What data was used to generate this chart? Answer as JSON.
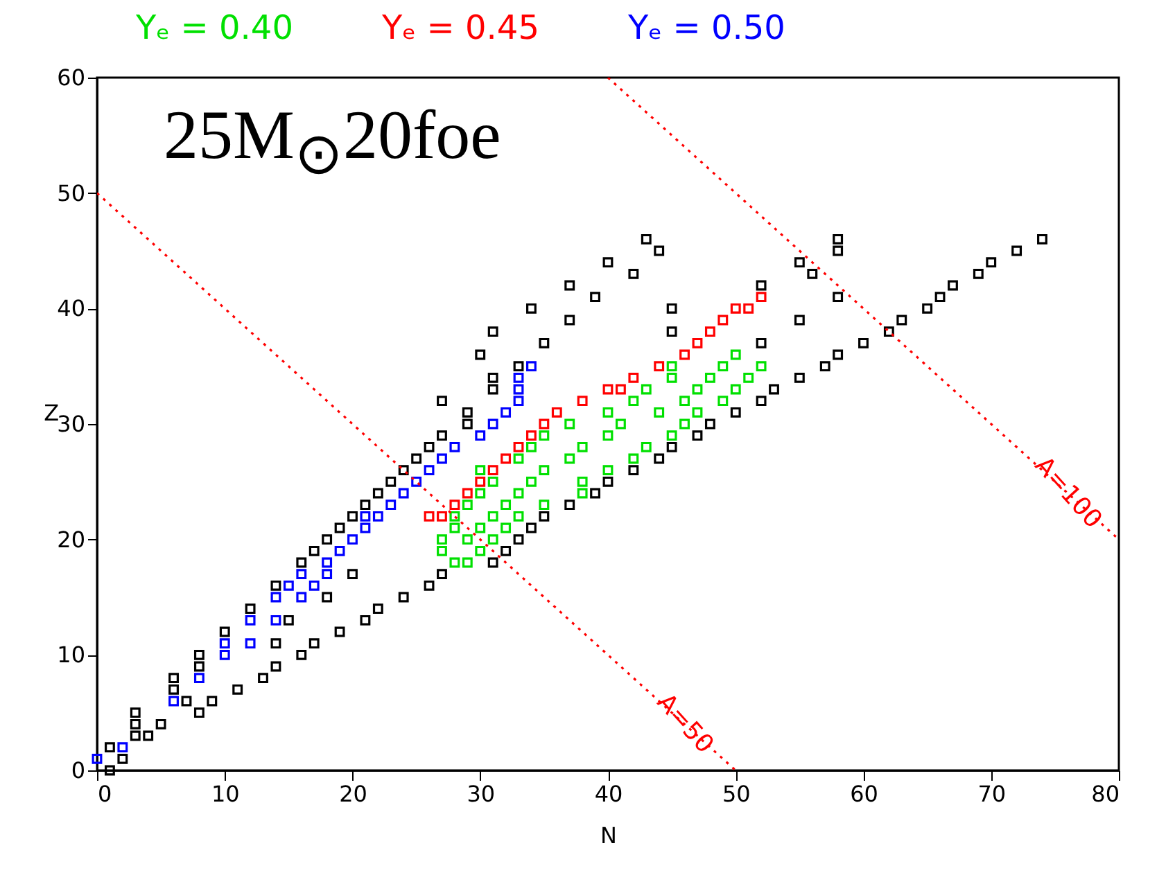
{
  "chart_data": {
    "type": "scatter",
    "title": "25M$_{⊙}$20foe",
    "xlabel": "N",
    "ylabel": "Z",
    "xlim": [
      0,
      80
    ],
    "ylim": [
      0,
      60
    ],
    "xticks": [
      0,
      10,
      20,
      30,
      40,
      50,
      60,
      70,
      80
    ],
    "yticks": [
      0,
      10,
      20,
      30,
      40,
      50,
      60
    ],
    "grid": false,
    "legend": "top",
    "marker": "square",
    "annotations": [
      {
        "text": "A=50",
        "x": 46,
        "y": 4
      },
      {
        "text": "A=100",
        "x": 76,
        "y": 24
      }
    ],
    "series": [
      {
        "color": "#000000",
        "x": [
          1,
          2,
          1,
          3,
          4,
          3,
          5,
          3,
          8,
          7,
          9,
          6,
          11,
          6,
          13,
          8,
          14,
          8,
          16,
          14,
          17,
          10,
          19,
          15,
          21,
          12,
          22,
          18,
          24,
          14,
          26,
          20,
          27,
          16,
          31,
          17,
          32,
          18,
          33,
          19,
          34,
          20,
          35,
          21,
          37,
          22,
          39,
          23,
          40,
          24,
          42,
          25,
          44,
          26,
          45,
          27,
          47,
          29,
          48,
          29,
          50,
          27,
          52,
          31,
          53,
          31,
          55,
          33,
          57,
          30,
          58,
          35,
          52,
          60,
          31,
          45,
          62,
          37,
          55,
          63,
          34,
          45,
          65,
          39,
          58,
          66,
          37,
          52,
          67,
          42,
          56,
          69,
          40,
          55,
          70,
          44,
          58,
          72,
          43,
          58,
          74
        ],
        "values": [
          0,
          1,
          2,
          3,
          3,
          4,
          4,
          5,
          5,
          6,
          6,
          7,
          7,
          8,
          8,
          9,
          9,
          10,
          10,
          11,
          11,
          12,
          12,
          13,
          13,
          14,
          14,
          15,
          15,
          16,
          16,
          17,
          17,
          18,
          18,
          19,
          19,
          20,
          20,
          21,
          21,
          22,
          22,
          23,
          23,
          24,
          24,
          25,
          25,
          26,
          26,
          27,
          27,
          28,
          28,
          29,
          29,
          30,
          30,
          31,
          31,
          32,
          32,
          33,
          33,
          34,
          34,
          35,
          35,
          36,
          36,
          37,
          37,
          37,
          38,
          38,
          38,
          39,
          39,
          39,
          40,
          40,
          40,
          41,
          41,
          41,
          42,
          42,
          42,
          43,
          43,
          43,
          44,
          44,
          44,
          45,
          45,
          45,
          46,
          46,
          46
        ]
      },
      {
        "name": "Yₑ = 0.40",
        "color": "#00e000",
        "x": [
          28,
          29,
          27,
          30,
          27,
          29,
          31,
          28,
          30,
          32,
          28,
          31,
          33,
          29,
          32,
          35,
          30,
          33,
          38,
          31,
          34,
          38,
          30,
          35,
          40,
          33,
          37,
          42,
          34,
          38,
          43,
          35,
          40,
          45,
          37,
          41,
          46,
          40,
          44,
          47,
          42,
          46,
          49,
          43,
          47,
          50,
          45,
          48,
          51,
          45,
          49,
          52,
          50
        ],
        "values": [
          18,
          18,
          19,
          19,
          20,
          20,
          20,
          21,
          21,
          21,
          22,
          22,
          22,
          23,
          23,
          23,
          24,
          24,
          24,
          25,
          25,
          25,
          26,
          26,
          26,
          27,
          27,
          27,
          28,
          28,
          28,
          29,
          29,
          29,
          30,
          30,
          30,
          31,
          31,
          31,
          32,
          32,
          32,
          33,
          33,
          33,
          34,
          34,
          34,
          35,
          35,
          35,
          36
        ]
      },
      {
        "name": "Yₑ = 0.45",
        "color": "#ff0000",
        "x": [
          26,
          27,
          28,
          29,
          30,
          31,
          32,
          33,
          34,
          35,
          36,
          38,
          40,
          41,
          42,
          44,
          46,
          47,
          48,
          49,
          50,
          51,
          52
        ],
        "values": [
          22,
          22,
          23,
          24,
          25,
          26,
          27,
          28,
          29,
          30,
          31,
          32,
          33,
          33,
          34,
          35,
          36,
          37,
          38,
          39,
          40,
          40,
          41
        ]
      },
      {
        "name": "Yₑ = 0.50",
        "color": "#0000ff",
        "x": [
          0,
          2,
          6,
          8,
          10,
          10,
          12,
          12,
          14,
          14,
          16,
          15,
          17,
          16,
          18,
          18,
          19,
          20,
          21,
          21,
          22,
          23,
          24,
          25,
          26,
          27,
          28,
          30,
          31,
          32,
          33,
          33,
          33,
          34
        ],
        "values": [
          1,
          2,
          6,
          8,
          10,
          11,
          11,
          13,
          13,
          15,
          15,
          16,
          16,
          17,
          17,
          18,
          19,
          20,
          21,
          22,
          22,
          23,
          24,
          25,
          26,
          27,
          28,
          29,
          30,
          31,
          32,
          33,
          34,
          35
        ]
      },
      {
        "type": "line",
        "color": "#ff0000",
        "line_style": "dotted",
        "marker": "none",
        "x": [
          0,
          50
        ],
        "values": [
          50,
          0
        ]
      },
      {
        "type": "line",
        "color": "#ff0000",
        "line_style": "dotted",
        "marker": "none",
        "x": [
          40,
          80
        ],
        "values": [
          60,
          20
        ]
      }
    ]
  }
}
